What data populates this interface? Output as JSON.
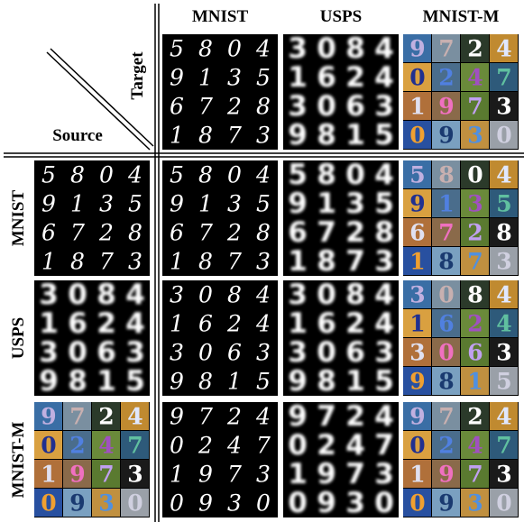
{
  "column_headers": [
    "MNIST",
    "USPS",
    "MNIST-M"
  ],
  "row_headers": [
    "MNIST",
    "USPS",
    "MNIST-M"
  ],
  "target_label": "Target",
  "source_label": "Source",
  "digits": [
    [
      [
        "5",
        "8",
        "0",
        "4"
      ],
      [
        "9",
        "1",
        "3",
        "5"
      ],
      [
        "6",
        "7",
        "2",
        "8"
      ],
      [
        "1",
        "8",
        "7",
        "3"
      ]
    ],
    [
      [
        "3",
        "0",
        "8",
        "4"
      ],
      [
        "1",
        "6",
        "2",
        "4"
      ],
      [
        "3",
        "0",
        "6",
        "3"
      ],
      [
        "9",
        "8",
        "1",
        "5"
      ]
    ],
    [
      [
        "9",
        "7",
        "2",
        "4"
      ],
      [
        "0",
        "2",
        "4",
        "7"
      ],
      [
        "1",
        "9",
        "7",
        "3"
      ],
      [
        "0",
        "9",
        "3",
        "0"
      ]
    ]
  ]
}
